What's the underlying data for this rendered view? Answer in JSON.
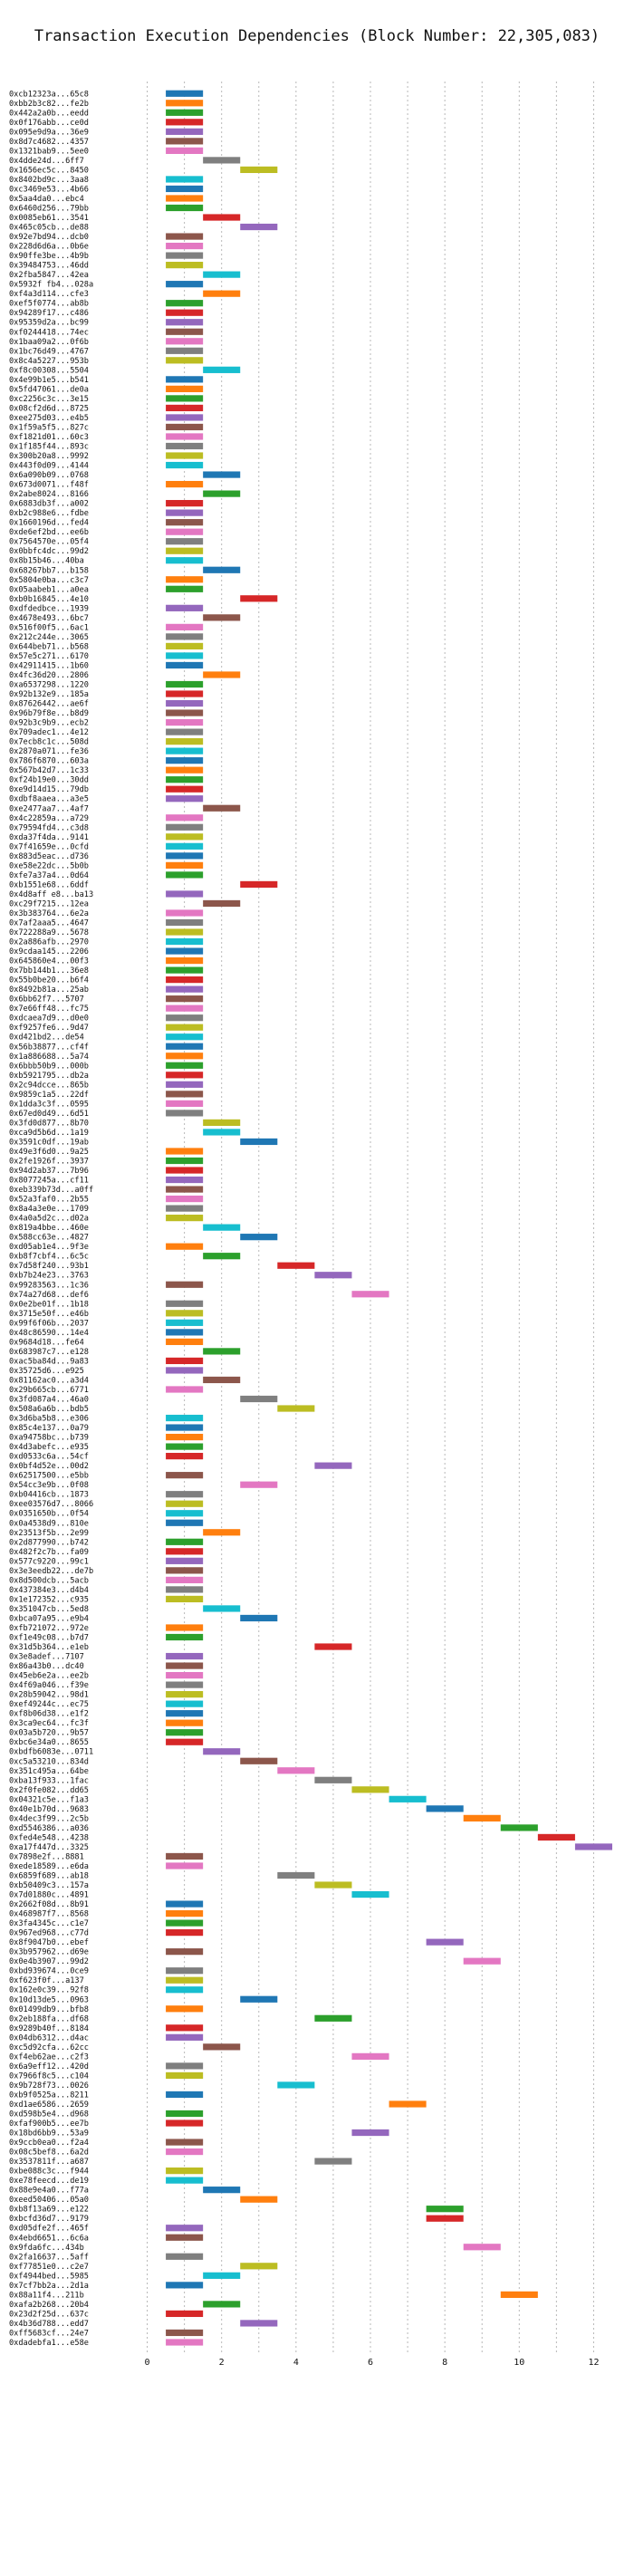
{
  "chart_data": {
    "type": "bar",
    "orientation": "horizontal",
    "title": "Transaction Execution Dependencies (Block Number: 22,305,083)",
    "xlabel": "",
    "ylabel": "",
    "xlim": [
      -0.5,
      12.5
    ],
    "x_ticks": [
      0,
      2,
      4,
      6,
      8,
      10,
      12
    ],
    "grid": "vertical dashed",
    "colors": [
      "#1f77b4",
      "#ff7f0e",
      "#2ca02c",
      "#d62728",
      "#9467bd",
      "#8c564b",
      "#e377c2",
      "#7f7f7f",
      "#bcbd22",
      "#17becf"
    ],
    "rows": [
      {
        "label": "0xcb12323a...65c8",
        "value": 1
      },
      {
        "label": "0xbb2b3c82...fe2b",
        "value": 1
      },
      {
        "label": "0x442a2a0b...eedd",
        "value": 1
      },
      {
        "label": "0x0f176abb...ce0d",
        "value": 1
      },
      {
        "label": "0x095e9d9a...36e9",
        "value": 1
      },
      {
        "label": "0x8d7c4682...4357",
        "value": 1
      },
      {
        "label": "0x1321bab9...5ee0",
        "value": 1
      },
      {
        "label": "0x4dde24d...6ff7",
        "value": 2
      },
      {
        "label": "0x1656ec5c...8450",
        "value": 3
      },
      {
        "label": "0x8402bd9c...3aa8",
        "value": 1
      },
      {
        "label": "0xc3469e53...4b66",
        "value": 1
      },
      {
        "label": "0x5aa4da0...ebc4",
        "value": 1
      },
      {
        "label": "0x6460d256...79bb",
        "value": 1
      },
      {
        "label": "0x0085eb61...3541",
        "value": 2
      },
      {
        "label": "0x465c05cb...de88",
        "value": 3
      },
      {
        "label": "0x92e7bd94...dcb0",
        "value": 1
      },
      {
        "label": "0x228d6d6a...0b6e",
        "value": 1
      },
      {
        "label": "0x90ffe3be...4b9b",
        "value": 1
      },
      {
        "label": "0x39484753...46dd",
        "value": 1
      },
      {
        "label": "0x2fba5847...42ea",
        "value": 2
      },
      {
        "label": "0x5932f fb4...028a",
        "value": 1
      },
      {
        "label": "0xf4a3d114...cfe3",
        "value": 2
      },
      {
        "label": "0xef5f0774...ab8b",
        "value": 1
      },
      {
        "label": "0x94289f17...c486",
        "value": 1
      },
      {
        "label": "0x95359d2a...bc99",
        "value": 1
      },
      {
        "label": "0xf0244418...74ec",
        "value": 1
      },
      {
        "label": "0x1baa09a2...0f6b",
        "value": 1
      },
      {
        "label": "0x1bc76d49...4767",
        "value": 1
      },
      {
        "label": "0x8c4a5227...953b",
        "value": 1
      },
      {
        "label": "0xf8c00308...5504",
        "value": 2
      },
      {
        "label": "0x4e99b1e5...b541",
        "value": 1
      },
      {
        "label": "0x5fd47061...de0a",
        "value": 1
      },
      {
        "label": "0xc2256c3c...3e15",
        "value": 1
      },
      {
        "label": "0x08cf2d6d...8725",
        "value": 1
      },
      {
        "label": "0xee275d03...e4b5",
        "value": 1
      },
      {
        "label": "0x1f59a5f5...827c",
        "value": 1
      },
      {
        "label": "0xf1821d01...60c3",
        "value": 1
      },
      {
        "label": "0x1f185f44...893c",
        "value": 1
      },
      {
        "label": "0x300b20a8...9992",
        "value": 1
      },
      {
        "label": "0x443f0d09...4144",
        "value": 1
      },
      {
        "label": "0x6a090b09...0768",
        "value": 2
      },
      {
        "label": "0x673d0071...f48f",
        "value": 1
      },
      {
        "label": "0x2abe8024...8166",
        "value": 2
      },
      {
        "label": "0x6883db3f...a002",
        "value": 1
      },
      {
        "label": "0xb2c988e6...fdbe",
        "value": 1
      },
      {
        "label": "0x1660196d...fed4",
        "value": 1
      },
      {
        "label": "0xde6ef2bd...ee6b",
        "value": 1
      },
      {
        "label": "0x7564570e...05f4",
        "value": 1
      },
      {
        "label": "0x0bbfc4dc...99d2",
        "value": 1
      },
      {
        "label": "0x8b15b46...40ba",
        "value": 1
      },
      {
        "label": "0x68267bb7...b158",
        "value": 2
      },
      {
        "label": "0x5804e0ba...c3c7",
        "value": 1
      },
      {
        "label": "0x05aabeb1...a0ea",
        "value": 1
      },
      {
        "label": "0xb0b16845...4e10",
        "value": 3
      },
      {
        "label": "0xdfdedbce...1939",
        "value": 1
      },
      {
        "label": "0x4678e493...6bc7",
        "value": 2
      },
      {
        "label": "0x516f00f5...6ac1",
        "value": 1
      },
      {
        "label": "0x212c244e...3065",
        "value": 1
      },
      {
        "label": "0x644beb71...b568",
        "value": 1
      },
      {
        "label": "0x57e5c271...6170",
        "value": 1
      },
      {
        "label": "0x42911415...1b60",
        "value": 1
      },
      {
        "label": "0x4fc36d20...2806",
        "value": 2
      },
      {
        "label": "0xa6537298...1220",
        "value": 1
      },
      {
        "label": "0x92b132e9...185a",
        "value": 1
      },
      {
        "label": "0x87626442...ae6f",
        "value": 1
      },
      {
        "label": "0x96b79f8e...b8d9",
        "value": 1
      },
      {
        "label": "0x92b3c9b9...ecb2",
        "value": 1
      },
      {
        "label": "0x709adec1...4e12",
        "value": 1
      },
      {
        "label": "0x7ecb8c1c...508d",
        "value": 1
      },
      {
        "label": "0x2870a071...fe36",
        "value": 1
      },
      {
        "label": "0x786f6870...603a",
        "value": 1
      },
      {
        "label": "0x567b42d7...1c33",
        "value": 1
      },
      {
        "label": "0xf24b19e0...30dd",
        "value": 1
      },
      {
        "label": "0xe9d14d15...79db",
        "value": 1
      },
      {
        "label": "0xdbf8aaea...a3e5",
        "value": 1
      },
      {
        "label": "0xe2477aa7...4af7",
        "value": 2
      },
      {
        "label": "0x4c22859a...a729",
        "value": 1
      },
      {
        "label": "0x79594fd4...c3d8",
        "value": 1
      },
      {
        "label": "0xda37f4da...9141",
        "value": 1
      },
      {
        "label": "0x7f41659e...0cfd",
        "value": 1
      },
      {
        "label": "0x883d5eac...d736",
        "value": 1
      },
      {
        "label": "0xe58e22dc...5b0b",
        "value": 1
      },
      {
        "label": "0xfe7a37a4...0d64",
        "value": 1
      },
      {
        "label": "0xb1551e68...6ddf",
        "value": 3
      },
      {
        "label": "0x4d8aff e8...ba13",
        "value": 1
      },
      {
        "label": "0xc29f7215...12ea",
        "value": 2
      },
      {
        "label": "0x3b383764...6e2a",
        "value": 1
      },
      {
        "label": "0x7af2aaa5...4647",
        "value": 1
      },
      {
        "label": "0x722288a9...5678",
        "value": 1
      },
      {
        "label": "0x2a886afb...2970",
        "value": 1
      },
      {
        "label": "0x9cdaa145...2206",
        "value": 1
      },
      {
        "label": "0x645860e4...00f3",
        "value": 1
      },
      {
        "label": "0x7bb144b1...36e8",
        "value": 1
      },
      {
        "label": "0x55b0be20...b6f4",
        "value": 1
      },
      {
        "label": "0x8492b81a...25ab",
        "value": 1
      },
      {
        "label": "0x6bb62f7...5707",
        "value": 1
      },
      {
        "label": "0x7e66ff48...fc75",
        "value": 1
      },
      {
        "label": "0xdcaea7d9...d0e0",
        "value": 1
      },
      {
        "label": "0xf9257fe6...9d47",
        "value": 1
      },
      {
        "label": "0xd421bd2...de54",
        "value": 1
      },
      {
        "label": "0x56b38877...cf4f",
        "value": 1
      },
      {
        "label": "0x1a886688...5a74",
        "value": 1
      },
      {
        "label": "0x6bbb50b9...000b",
        "value": 1
      },
      {
        "label": "0xb5921795...db2a",
        "value": 1
      },
      {
        "label": "0x2c94dcce...865b",
        "value": 1
      },
      {
        "label": "0x9859c1a5...22df",
        "value": 1
      },
      {
        "label": "0x1dda3c3f...0595",
        "value": 1
      },
      {
        "label": "0x67ed0d49...6d51",
        "value": 1
      },
      {
        "label": "0x3fd0d877...8b70",
        "value": 2
      },
      {
        "label": "0xca9d5b6d...1a19",
        "value": 2
      },
      {
        "label": "0x3591c0df...19ab",
        "value": 3
      },
      {
        "label": "0x49e3f6d0...9a25",
        "value": 1
      },
      {
        "label": "0x2fe1926f...3937",
        "value": 1
      },
      {
        "label": "0x94d2ab37...7b96",
        "value": 1
      },
      {
        "label": "0x8077245a...cf11",
        "value": 1
      },
      {
        "label": "0xeb339b73d...a0ff",
        "value": 1
      },
      {
        "label": "0x52a3faf0...2b55",
        "value": 1
      },
      {
        "label": "0x8a4a3e0e...1709",
        "value": 1
      },
      {
        "label": "0x4a0a5d2c...d02a",
        "value": 1
      },
      {
        "label": "0x819a4bbe...460e",
        "value": 2
      },
      {
        "label": "0x588cc63e...4827",
        "value": 3
      },
      {
        "label": "0xd05ab1e4...9f3e",
        "value": 1
      },
      {
        "label": "0xb8f7cbf4...6c5c",
        "value": 2
      },
      {
        "label": "0x7d58f240...93b1",
        "value": 4
      },
      {
        "label": "0xb7b24e23...3763",
        "value": 5
      },
      {
        "label": "0x99283563...1c36",
        "value": 1
      },
      {
        "label": "0x74a27d68...def6",
        "value": 6
      },
      {
        "label": "0x0e2be01f...1b18",
        "value": 1
      },
      {
        "label": "0x3715e50f...e46b",
        "value": 1
      },
      {
        "label": "0x99f6f06b...2037",
        "value": 1
      },
      {
        "label": "0x48c86590...14e4",
        "value": 1
      },
      {
        "label": "0x9684d18...fe64",
        "value": 1
      },
      {
        "label": "0x683987c7...e128",
        "value": 2
      },
      {
        "label": "0xac5ba84d...9a83",
        "value": 1
      },
      {
        "label": "0x35725d6...e925",
        "value": 1
      },
      {
        "label": "0x81162ac0...a3d4",
        "value": 2
      },
      {
        "label": "0x29b665cb...6771",
        "value": 1
      },
      {
        "label": "0x3fd087a4...46a0",
        "value": 3
      },
      {
        "label": "0x508a6a6b...bdb5",
        "value": 4
      },
      {
        "label": "0x3d6ba5b8...e306",
        "value": 1
      },
      {
        "label": "0x85c4e137...0a79",
        "value": 1
      },
      {
        "label": "0xa94758bc...b739",
        "value": 1
      },
      {
        "label": "0x4d3abefc...e935",
        "value": 1
      },
      {
        "label": "0xd0533c6a...54cf",
        "value": 1
      },
      {
        "label": "0x0bf4d52e...00d2",
        "value": 5
      },
      {
        "label": "0x62517500...e5bb",
        "value": 1
      },
      {
        "label": "0x54cc3e9b...0f08",
        "value": 3
      },
      {
        "label": "0xb04416cb...1873",
        "value": 1
      },
      {
        "label": "0xee03576d7...8066",
        "value": 1
      },
      {
        "label": "0x0351650b...0f54",
        "value": 1
      },
      {
        "label": "0x0a4538d9...810e",
        "value": 1
      },
      {
        "label": "0x23513f5b...2e99",
        "value": 2
      },
      {
        "label": "0x2d877990...b742",
        "value": 1
      },
      {
        "label": "0x482f2c7b...fa09",
        "value": 1
      },
      {
        "label": "0x577c9220...99c1",
        "value": 1
      },
      {
        "label": "0x3e3eedb22...de7b",
        "value": 1
      },
      {
        "label": "0x8d500dcb...5acb",
        "value": 1
      },
      {
        "label": "0x437384e3...d4b4",
        "value": 1
      },
      {
        "label": "0x1e172352...c935",
        "value": 1
      },
      {
        "label": "0x351047cb...5ed8",
        "value": 2
      },
      {
        "label": "0xbca07a95...e9b4",
        "value": 3
      },
      {
        "label": "0xfb721072...972e",
        "value": 1
      },
      {
        "label": "0xf1e49c08...b7d7",
        "value": 1
      },
      {
        "label": "0x31d5b364...e1eb",
        "value": 5
      },
      {
        "label": "0x3e8adef...7107",
        "value": 1
      },
      {
        "label": "0x86a43b0...dc40",
        "value": 1
      },
      {
        "label": "0x45eb6e2a...ee2b",
        "value": 1
      },
      {
        "label": "0x4f69a046...f39e",
        "value": 1
      },
      {
        "label": "0x28b59042...98d1",
        "value": 1
      },
      {
        "label": "0xef49244c...ec75",
        "value": 1
      },
      {
        "label": "0xf8b06d38...e1f2",
        "value": 1
      },
      {
        "label": "0x3ca9ec64...fc3f",
        "value": 1
      },
      {
        "label": "0x03a5b720...9b57",
        "value": 1
      },
      {
        "label": "0xbc6e34a0...8655",
        "value": 1
      },
      {
        "label": "0xbdfb6083e...0711",
        "value": 2
      },
      {
        "label": "0xc5a53210...834d",
        "value": 3
      },
      {
        "label": "0x351c495a...64be",
        "value": 4
      },
      {
        "label": "0xba13f933...1fac",
        "value": 5
      },
      {
        "label": "0x2f0fe082...dd65",
        "value": 6
      },
      {
        "label": "0x04321c5e...f1a3",
        "value": 7
      },
      {
        "label": "0x40e1b70d...9683",
        "value": 8
      },
      {
        "label": "0x4dec3f99...2c5b",
        "value": 9
      },
      {
        "label": "0xd5546386...a036",
        "value": 10
      },
      {
        "label": "0xfed4e548...4238",
        "value": 11
      },
      {
        "label": "0xa17f447d...3325",
        "value": 12
      },
      {
        "label": "0x7898e2f...8881",
        "value": 1
      },
      {
        "label": "0xede18589...e6da",
        "value": 1
      },
      {
        "label": "0x6859f689...ab18",
        "value": 4
      },
      {
        "label": "0xb50409c3...157a",
        "value": 5
      },
      {
        "label": "0x7d01880c...4891",
        "value": 6
      },
      {
        "label": "0x2662f08d...8b91",
        "value": 1
      },
      {
        "label": "0x468987f7...8568",
        "value": 1
      },
      {
        "label": "0x3fa4345c...c1e7",
        "value": 1
      },
      {
        "label": "0x967ed968...c77d",
        "value": 1
      },
      {
        "label": "0x8f9047b0...ebef",
        "value": 8
      },
      {
        "label": "0x3b957962...d69e",
        "value": 1
      },
      {
        "label": "0x0e4b3907...99d2",
        "value": 9
      },
      {
        "label": "0xbd939674...0ce9",
        "value": 1
      },
      {
        "label": "0xf623f0f...a137",
        "value": 1
      },
      {
        "label": "0x162e0c39...92f8",
        "value": 1
      },
      {
        "label": "0x10d13de5...0963",
        "value": 3
      },
      {
        "label": "0x01499db9...bfb8",
        "value": 1
      },
      {
        "label": "0x2eb188fa...df68",
        "value": 5
      },
      {
        "label": "0x9289b40f...8184",
        "value": 1
      },
      {
        "label": "0x04db6312...d4ac",
        "value": 1
      },
      {
        "label": "0xc5d92cfa...62cc",
        "value": 2
      },
      {
        "label": "0xf4eb62ae...c2f3",
        "value": 6
      },
      {
        "label": "0x6a9eff12...420d",
        "value": 1
      },
      {
        "label": "0x7966f8c5...c104",
        "value": 1
      },
      {
        "label": "0x9b728f73...0026",
        "value": 4
      },
      {
        "label": "0xb9f0525a...8211",
        "value": 1
      },
      {
        "label": "0xd1ae6586...2659",
        "value": 7
      },
      {
        "label": "0xd598b5e4...d968",
        "value": 1
      },
      {
        "label": "0xfaf900b5...ee7b",
        "value": 1
      },
      {
        "label": "0x18bd6bb9...53a9",
        "value": 6
      },
      {
        "label": "0x9ccb0ea0...f2a4",
        "value": 1
      },
      {
        "label": "0x08c5bef8...6a2d",
        "value": 1
      },
      {
        "label": "0x3537811f...a687",
        "value": 5
      },
      {
        "label": "0xbe088c3c...f944",
        "value": 1
      },
      {
        "label": "0xe78feecd...de19",
        "value": 1
      },
      {
        "label": "0x88e9e4a0...f77a",
        "value": 2
      },
      {
        "label": "0xeed50406...05a0",
        "value": 3
      },
      {
        "label": "0xb8f13a69...e122",
        "value": 8
      },
      {
        "label": "0xbcfd36d7...9179",
        "value": 8
      },
      {
        "label": "0xd05dfe2f...465f",
        "value": 1
      },
      {
        "label": "0x4ebd6651...6c6a",
        "value": 1
      },
      {
        "label": "0x9fda6fc...434b",
        "value": 9
      },
      {
        "label": "0x2fa16637...5aff",
        "value": 1
      },
      {
        "label": "0xf77851e0...c2e7",
        "value": 3
      },
      {
        "label": "0xf4944bed...5985",
        "value": 2
      },
      {
        "label": "0x7cf7bb2a...2d1a",
        "value": 1
      },
      {
        "label": "0x88a11f4...211b",
        "value": 10
      },
      {
        "label": "0xafa2b268...20b4",
        "value": 2
      },
      {
        "label": "0x23d2f25d...637c",
        "value": 1
      },
      {
        "label": "0x4b36d788...edd7",
        "value": 3
      },
      {
        "label": "0xff5683cf...24e7",
        "value": 1
      },
      {
        "label": "0xdadebfa1...e58e",
        "value": 1
      }
    ]
  }
}
